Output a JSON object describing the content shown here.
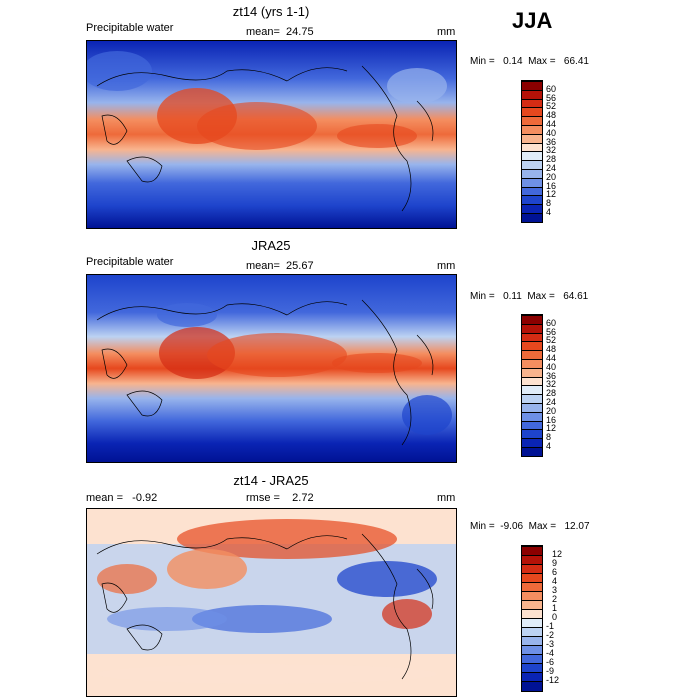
{
  "season": "JJA",
  "panels": [
    {
      "title": "zt14 (yrs 1-1)",
      "left_label": "Precipitable water",
      "center_label": "mean=  24.75",
      "right_label": "mm",
      "minmax": "Min =   0.14  Max =   66.41",
      "colorbar": {
        "labels": [
          "60",
          "56",
          "52",
          "48",
          "44",
          "40",
          "36",
          "32",
          "28",
          "24",
          "20",
          "16",
          "12",
          "8",
          "4"
        ],
        "colors": [
          "#8b0000",
          "#b41208",
          "#d42c14",
          "#e6481e",
          "#ee6a3a",
          "#f48e60",
          "#f8b48e",
          "#fde2d0",
          "#e0ecf8",
          "#bcd2f2",
          "#98b4ec",
          "#6e90e6",
          "#4268dc",
          "#1e44cc",
          "#0a24b4",
          "#001294"
        ]
      }
    },
    {
      "title": "JRA25",
      "left_label": "Precipitable water",
      "center_label": "mean=  25.67",
      "right_label": "mm",
      "minmax": "Min =   0.11  Max =   64.61",
      "colorbar": {
        "labels": [
          "60",
          "56",
          "52",
          "48",
          "44",
          "40",
          "36",
          "32",
          "28",
          "24",
          "20",
          "16",
          "12",
          "8",
          "4"
        ],
        "colors": [
          "#8b0000",
          "#b41208",
          "#d42c14",
          "#e6481e",
          "#ee6a3a",
          "#f48e60",
          "#f8b48e",
          "#fde2d0",
          "#e0ecf8",
          "#bcd2f2",
          "#98b4ec",
          "#6e90e6",
          "#4268dc",
          "#1e44cc",
          "#0a24b4",
          "#001294"
        ]
      }
    },
    {
      "title": "zt14 - JRA25",
      "left_label": "mean =   -0.92",
      "center_label": "rmse =    2.72",
      "right_label": "mm",
      "minmax": "Min =  -9.06  Max =   12.07",
      "colorbar": {
        "labels": [
          "12",
          "9",
          "6",
          "4",
          "3",
          "2",
          "1",
          "0",
          "-1",
          "-2",
          "-3",
          "-4",
          "-6",
          "-9",
          "-12"
        ],
        "colors": [
          "#8b0000",
          "#b41208",
          "#d42c14",
          "#e6481e",
          "#ee6a3a",
          "#f48e60",
          "#f8b48e",
          "#fde2d0",
          "#e0ecf8",
          "#bcd2f2",
          "#98b4ec",
          "#6e90e6",
          "#4268dc",
          "#1e44cc",
          "#0a24b4",
          "#001294"
        ]
      }
    }
  ]
}
